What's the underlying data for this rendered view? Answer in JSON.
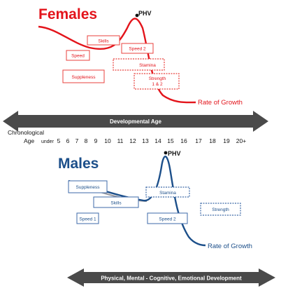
{
  "females": {
    "title": "Females",
    "phv": "PHV",
    "boxes": [
      "Skills",
      "Speed",
      "Speed 2",
      "Stamina",
      "Suppleness",
      "Strength",
      "1 & 2"
    ],
    "rate_label": "Rate of Growth",
    "color": "#e3141b",
    "box_color": "#e8403c"
  },
  "dev_arrow": {
    "label": "Developmental Age",
    "color": "#4a4a4a"
  },
  "chrono": {
    "label_line1": "Chronological",
    "label_line2": "Age",
    "under": "under",
    "ages": [
      "5",
      "6",
      "7",
      "8",
      "9",
      "10",
      "11",
      "12",
      "13",
      "14",
      "15",
      "16",
      "17",
      "18",
      "19",
      "20+"
    ]
  },
  "males": {
    "title": "Males",
    "phv": "PHV",
    "boxes": [
      "Suppleness",
      "Skills",
      "Stamina",
      "Speed 1",
      "Speed 2",
      "Strength"
    ],
    "rate_label": "Rate of Growth",
    "color": "#1c4f8a",
    "box_color": "#3d6aa8",
    "grey_line": "#9a9aa0"
  },
  "bottom_arrow": {
    "label": "Physical, Mental - Cognitive, Emotional Development",
    "color": "#4a4a4a"
  }
}
